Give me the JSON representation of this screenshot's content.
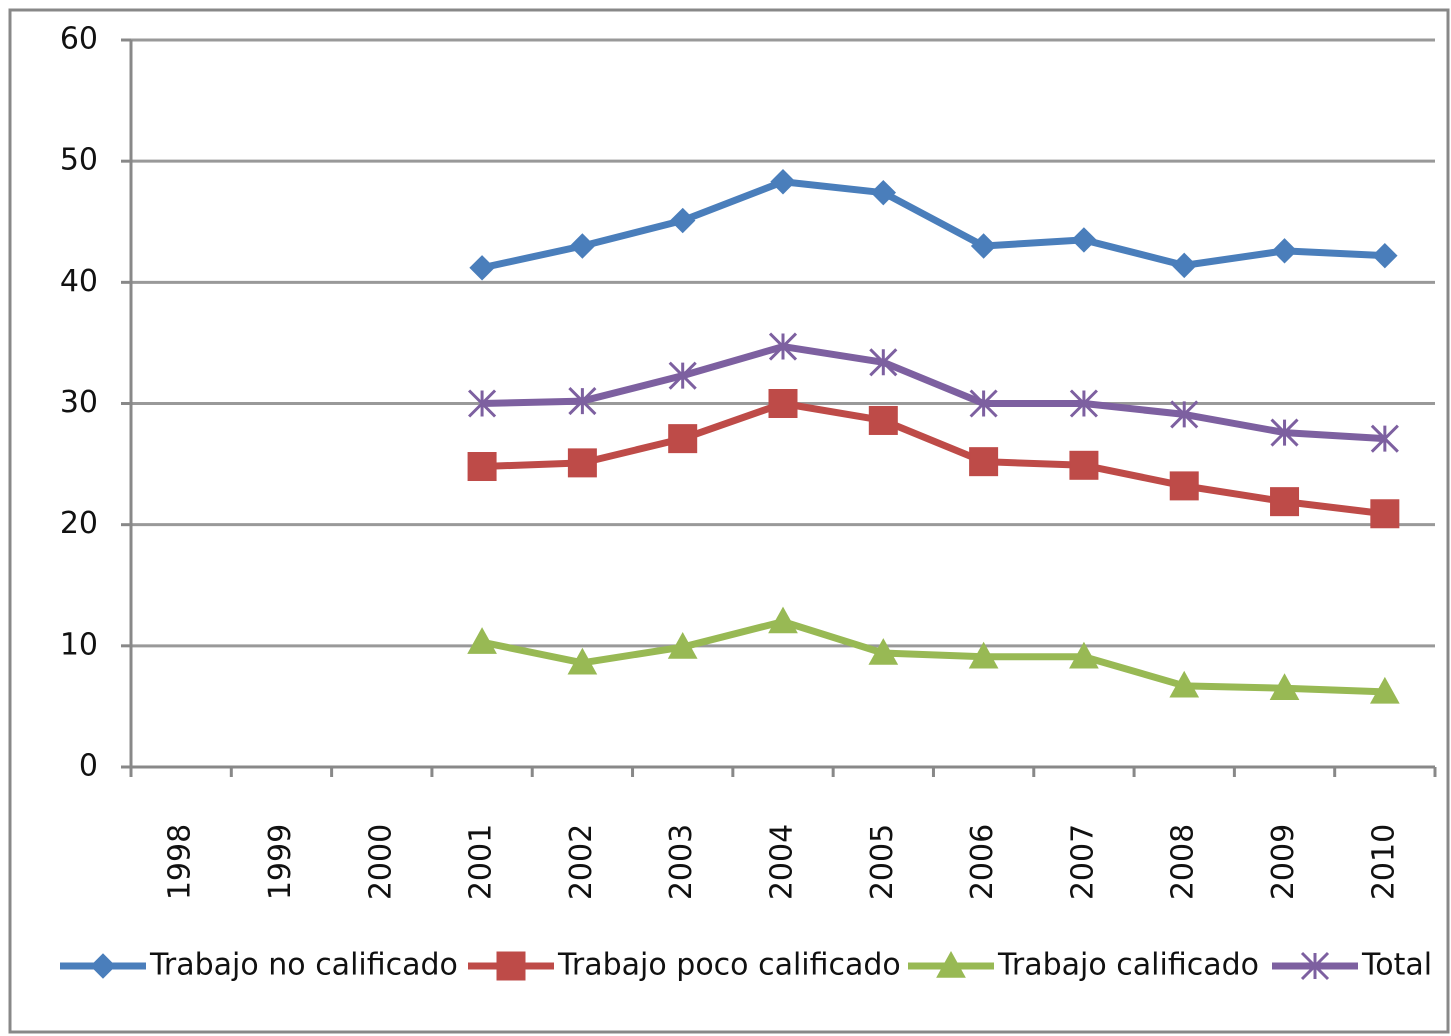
{
  "chart_data": {
    "type": "line",
    "categories": [
      "1998",
      "1999",
      "2000",
      "2001",
      "2002",
      "2003",
      "2004",
      "2005",
      "2006",
      "2007",
      "2008",
      "2009",
      "2010"
    ],
    "series": [
      {
        "name": "Trabajo no calificado",
        "color": "#4a7ebb",
        "marker": "diamond",
        "values": [
          null,
          null,
          null,
          41.2,
          43.0,
          45.1,
          48.3,
          47.4,
          43.0,
          43.5,
          41.4,
          42.6,
          42.2
        ]
      },
      {
        "name": "Trabajo poco calificado",
        "color": "#be4b48",
        "marker": "square",
        "values": [
          null,
          null,
          null,
          24.8,
          25.1,
          27.1,
          30.0,
          28.6,
          25.2,
          24.9,
          23.2,
          21.9,
          20.9
        ]
      },
      {
        "name": "Trabajo calificado",
        "color": "#98b954",
        "marker": "triangle",
        "values": [
          null,
          null,
          null,
          10.3,
          8.6,
          9.9,
          12.0,
          9.4,
          9.1,
          9.1,
          6.7,
          6.5,
          6.2
        ]
      },
      {
        "name": "Total",
        "color": "#7d60a0",
        "marker": "cross",
        "values": [
          null,
          null,
          null,
          30.0,
          30.2,
          32.3,
          34.7,
          33.4,
          30.0,
          30.0,
          29.1,
          27.6,
          27.1
        ]
      }
    ],
    "ylim": [
      0,
      60
    ],
    "yticks": [
      0,
      10,
      20,
      30,
      40,
      50,
      60
    ],
    "grid": true,
    "legend": "bottom"
  }
}
